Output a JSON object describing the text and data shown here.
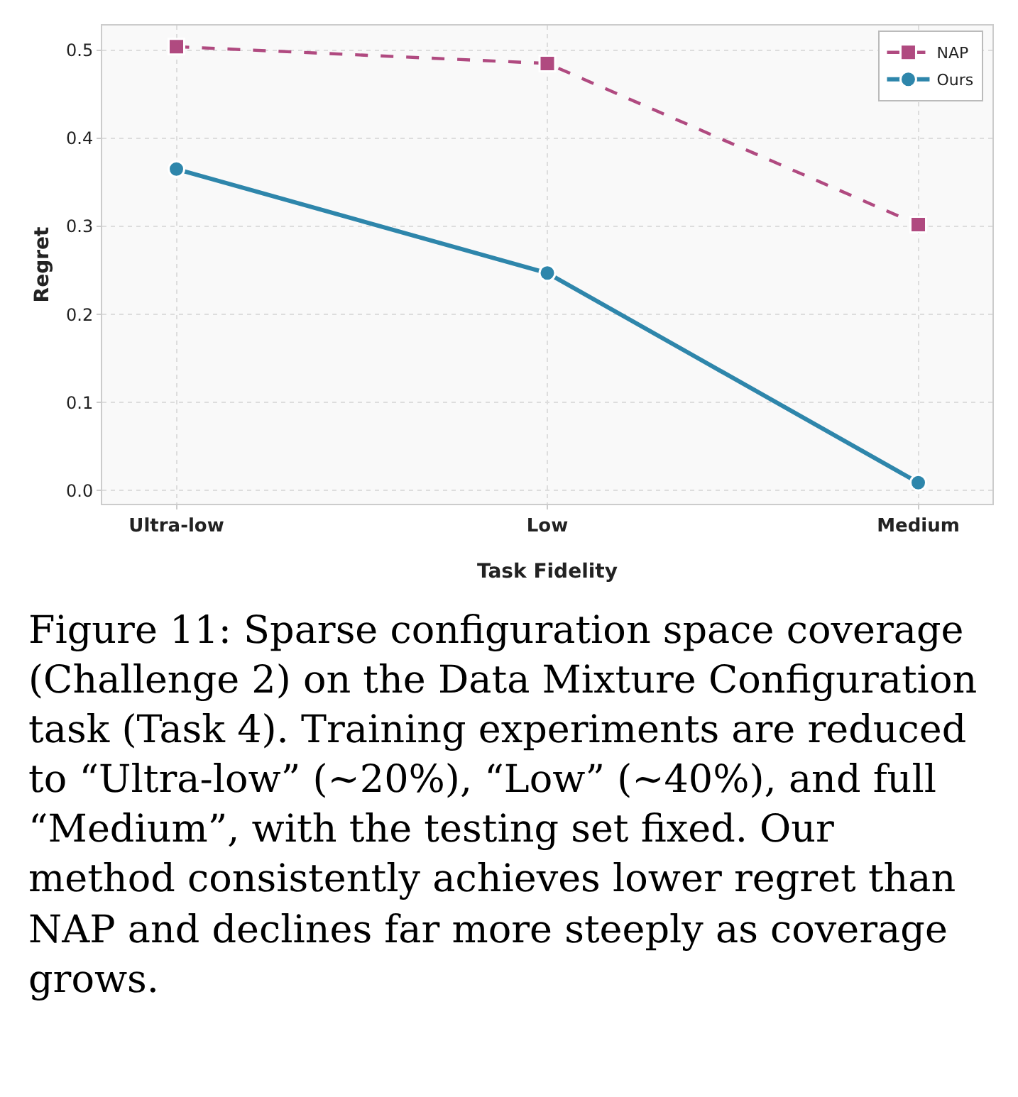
{
  "chart_data": {
    "type": "line",
    "xlabel": "Task Fidelity",
    "ylabel": "Regret",
    "categories": [
      "Ultra-low",
      "Low",
      "Medium"
    ],
    "series": [
      {
        "name": "NAP",
        "color": "#b04a80",
        "values": [
          0.504,
          0.485,
          0.302
        ],
        "marker": "square",
        "line_style": "dashed"
      },
      {
        "name": "Ours",
        "color": "#2e86ab",
        "values": [
          0.365,
          0.247,
          0.009
        ],
        "marker": "circle",
        "line_style": "solid"
      }
    ],
    "ylim": [
      -0.015,
      0.528
    ],
    "yticks": [
      {
        "value": 0,
        "label": "0.0"
      },
      0.1,
      0.2,
      0.3,
      0.4,
      0.5
    ],
    "grid": true,
    "legend": "top right",
    "annotations": [
      "Figure 11: Sparse configuration space coverage (Challenge 2) on the Data Mixture Configuration task (Task 4). Training experiments are reduced to “Ultra-low” (∼20%), “Low” (∼40%), and full “Medium”, with the testing set fixed. Our method consistently achieves lower regret than NAP and declines far more steeply as coverage grows."
    ]
  }
}
